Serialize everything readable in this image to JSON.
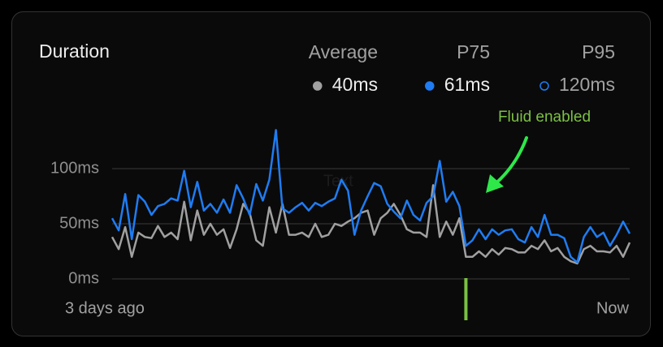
{
  "chart_data": {
    "type": "line",
    "title": "Duration",
    "summary": [
      {
        "name": "Average",
        "value_label": "40ms",
        "color": "#a0a0a0",
        "marker": "filled"
      },
      {
        "name": "P75",
        "value_label": "61ms",
        "color": "#1f7cf2",
        "marker": "filled"
      },
      {
        "name": "P95",
        "value_label": "120ms",
        "color": "#1f7cf2",
        "marker": "hollow"
      }
    ],
    "series": [
      {
        "name": "Average",
        "color": "#a0a0a0",
        "values": [
          38,
          27,
          47,
          20,
          42,
          38,
          37,
          48,
          38,
          42,
          36,
          70,
          35,
          62,
          40,
          50,
          40,
          45,
          28,
          45,
          68,
          60,
          35,
          30,
          65,
          42,
          68,
          40,
          40,
          42,
          38,
          50,
          38,
          40,
          50,
          48,
          52,
          55,
          60,
          62,
          40,
          55,
          60,
          68,
          58,
          45,
          42,
          42,
          38,
          85,
          38,
          52,
          40,
          55,
          20,
          20,
          25,
          20,
          27,
          22,
          28,
          27,
          24,
          24,
          30,
          27,
          35,
          25,
          28,
          20,
          16,
          14,
          27,
          30,
          25,
          25,
          24,
          30,
          20,
          33
        ]
      },
      {
        "name": "P75",
        "color": "#1f7cf2",
        "values": [
          55,
          44,
          77,
          36,
          76,
          70,
          58,
          66,
          68,
          73,
          71,
          98,
          65,
          88,
          62,
          68,
          60,
          72,
          60,
          85,
          73,
          58,
          86,
          71,
          90,
          135,
          64,
          60,
          65,
          69,
          62,
          69,
          66,
          70,
          73,
          90,
          80,
          40,
          62,
          75,
          87,
          84,
          68,
          61,
          55,
          71,
          58,
          53,
          69,
          75,
          107,
          70,
          79,
          66,
          30,
          35,
          45,
          36,
          45,
          40,
          44,
          45,
          36,
          33,
          47,
          38,
          58,
          40,
          40,
          37,
          20,
          15,
          38,
          47,
          38,
          42,
          30,
          40,
          52,
          41
        ]
      }
    ],
    "x_labels": [
      "3 days ago",
      "Now"
    ],
    "ylim": [
      0,
      140
    ],
    "yticks": [
      {
        "value": 0,
        "label": "0ms"
      },
      {
        "value": 50,
        "label": "50ms"
      },
      {
        "value": 100,
        "label": "100ms"
      }
    ],
    "grid": true,
    "annotation": {
      "text": "Fluid enabled",
      "index": 54,
      "color": "#7cc043"
    },
    "overlay_text": "Text"
  }
}
